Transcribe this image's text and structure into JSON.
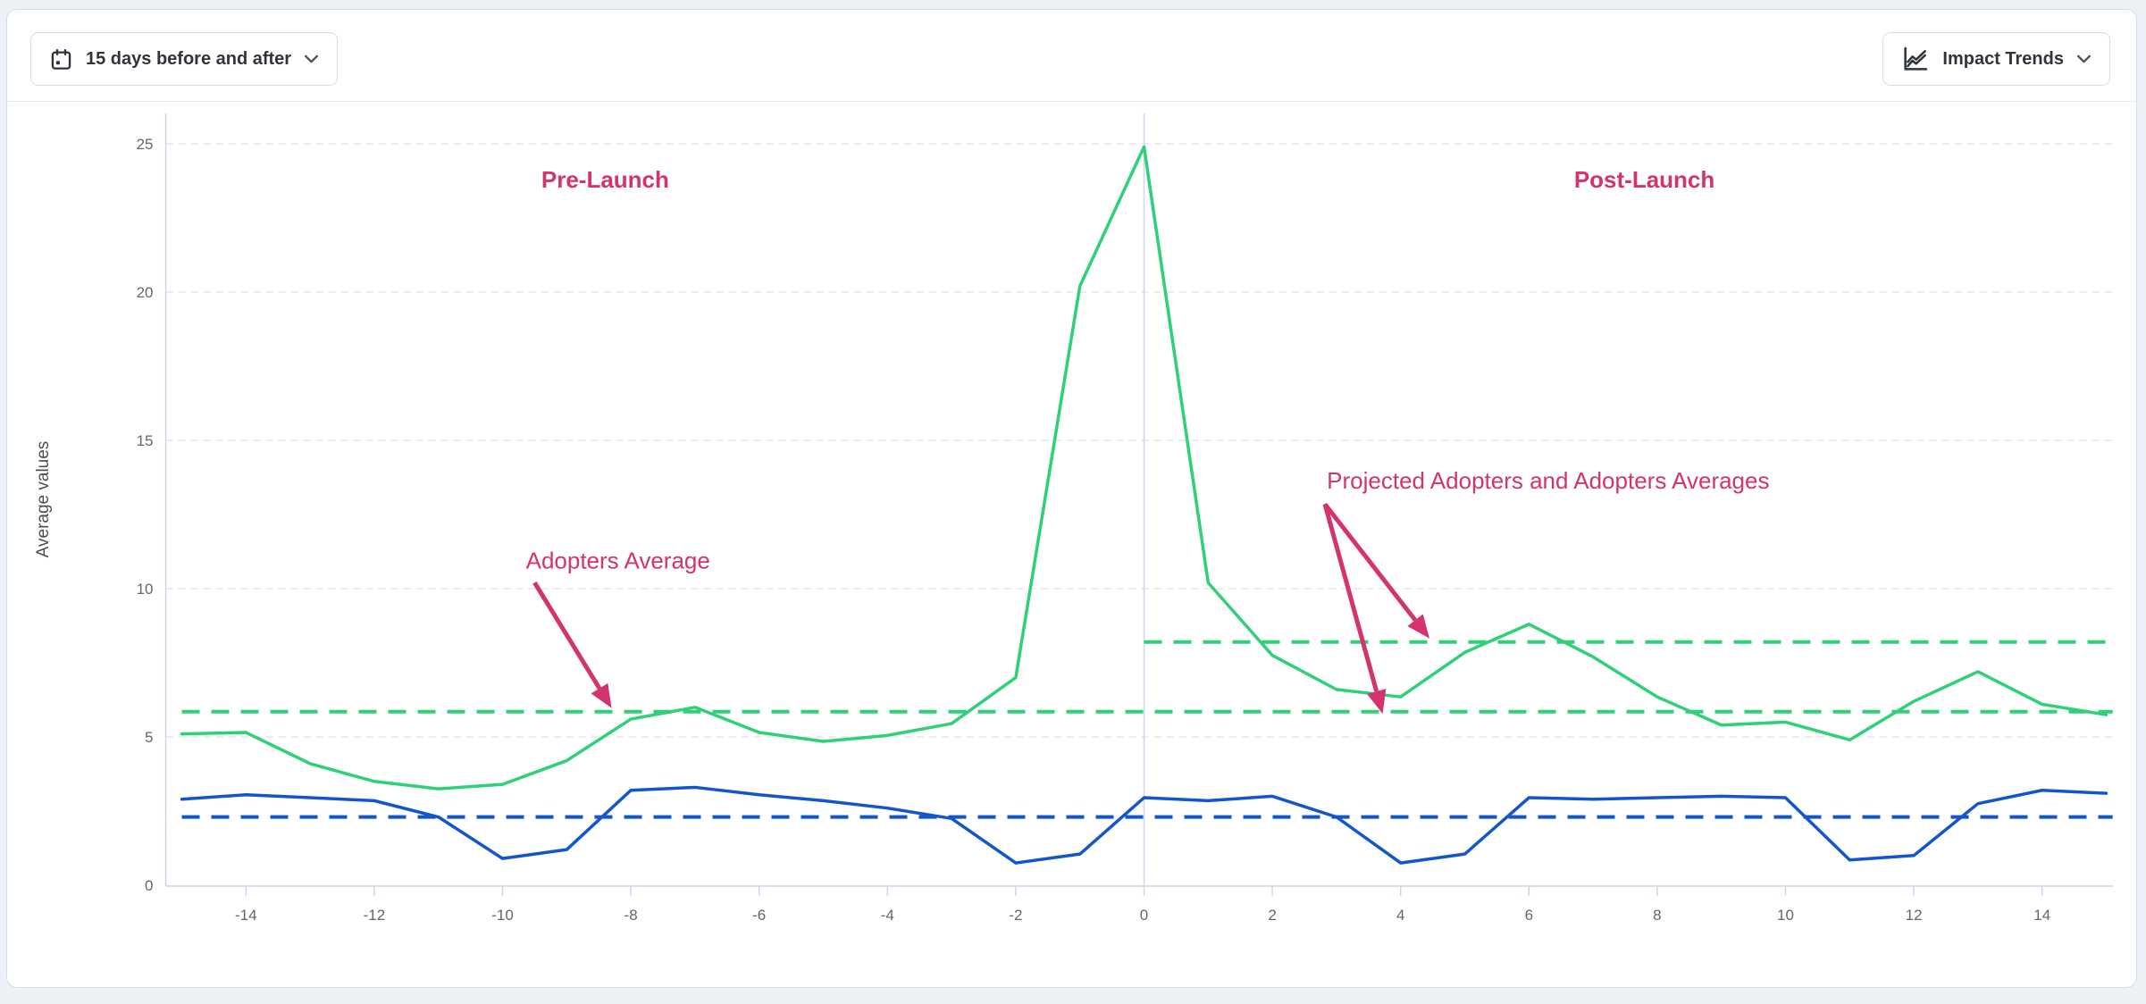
{
  "page": {
    "background": "#edf0f5",
    "card_border": "#d6dde9"
  },
  "toolbar": {
    "date_range_button": {
      "label": "15 days before and after",
      "icon": "calendar-icon"
    },
    "trends_button": {
      "label": "Impact Trends",
      "icon": "trend-chart-icon"
    }
  },
  "chart_data": {
    "type": "line",
    "title": "",
    "xlabel": "",
    "ylabel": "Average values",
    "ylim": [
      0,
      26.2
    ],
    "xlim": [
      -15.1,
      15.2
    ],
    "grid": "horizontal-dashed",
    "legend_position": "none",
    "launch_line_x": 0,
    "xticks": [
      -14,
      -12,
      -10,
      -8,
      -6,
      -4,
      -2,
      0,
      2,
      4,
      6,
      8,
      10,
      12,
      14
    ],
    "yticks": [
      0,
      5,
      10,
      15,
      20,
      25
    ],
    "x": [
      -15,
      -14,
      -13,
      -12,
      -11,
      -10,
      -9,
      -8,
      -7,
      -6,
      -5,
      -4,
      -3,
      -2,
      -1,
      0,
      1,
      2,
      3,
      4,
      5,
      6,
      7,
      8,
      9,
      10,
      11,
      12,
      13,
      14,
      15
    ],
    "series": [
      {
        "id": "adopters",
        "color": "#2fd078",
        "width": 3.5,
        "values": [
          5.1,
          5.15,
          4.1,
          3.5,
          3.25,
          3.4,
          4.2,
          5.6,
          6.0,
          5.15,
          4.85,
          5.05,
          5.45,
          7.0,
          20.2,
          24.9,
          10.2,
          7.75,
          6.6,
          6.35,
          7.85,
          8.8,
          7.7,
          6.35,
          5.4,
          5.5,
          4.9,
          6.2,
          7.2,
          6.1,
          5.75
        ]
      },
      {
        "id": "comparison",
        "color": "#1255cc",
        "width": 3.5,
        "values": [
          2.9,
          3.05,
          2.95,
          2.85,
          2.3,
          0.9,
          1.2,
          3.2,
          3.3,
          3.05,
          2.85,
          2.6,
          2.25,
          0.75,
          1.05,
          2.95,
          2.85,
          3.0,
          2.3,
          0.75,
          1.05,
          2.95,
          2.9,
          2.95,
          3.0,
          2.95,
          0.85,
          1.0,
          2.75,
          3.2,
          3.1
        ]
      }
    ],
    "reference_lines": [
      {
        "id": "adopters-average",
        "value": 5.85,
        "color": "#2fd078",
        "from": -15,
        "to": 15.1
      },
      {
        "id": "projected-adopters-average",
        "value": 8.2,
        "color": "#2fd078",
        "from": 0,
        "to": 15.1
      },
      {
        "id": "comparison-average",
        "value": 2.3,
        "color": "#1255cc",
        "from": -15,
        "to": 15.1
      }
    ],
    "annotations": {
      "color": "#d4336e",
      "labels": [
        {
          "text": "Pre-Launch",
          "x": -8.4,
          "y": 23.8,
          "bold": true
        },
        {
          "text": "Post-Launch",
          "x": 7.8,
          "y": 23.8,
          "bold": true
        },
        {
          "text": "Adopters Average",
          "x": -8.2,
          "y": 10.95,
          "bold": false
        },
        {
          "text": "Projected Adopters and Adopters Averages",
          "x": 6.3,
          "y": 13.65,
          "bold": false
        }
      ],
      "arrows": [
        {
          "x1": -9.5,
          "y1": 10.2,
          "x2": -8.3,
          "y2": 5.97
        },
        {
          "x1": 2.82,
          "y1": 12.85,
          "x2": 4.45,
          "y2": 8.32
        },
        {
          "x1": 2.82,
          "y1": 12.85,
          "x2": 3.72,
          "y2": 5.78
        }
      ]
    },
    "axis_style": {
      "axis_color": "#ccd6eb",
      "grid_color": "#e6e6e6",
      "tick_label_color": "#666666",
      "axis_title_color": "#4d4d4d"
    }
  }
}
